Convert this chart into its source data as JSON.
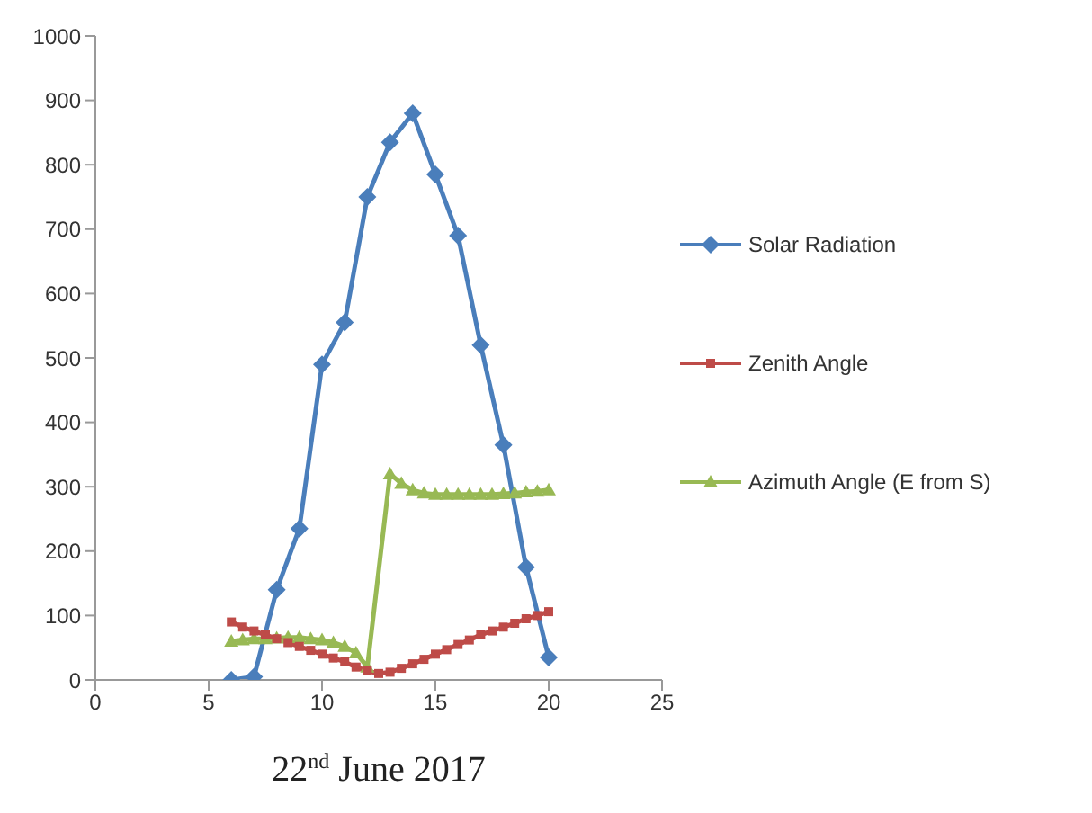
{
  "chart_data": {
    "type": "line",
    "xlabel": "22$^{nd}$ June 2017",
    "xlim": [
      0,
      25
    ],
    "xticks": [
      0,
      5,
      10,
      15,
      20,
      25
    ],
    "ylim": [
      0,
      1000
    ],
    "yticks": [
      0,
      100,
      200,
      300,
      400,
      500,
      600,
      700,
      800,
      900,
      1000
    ],
    "grid": false,
    "legend": "right",
    "series": [
      {
        "name": "Solar Radiation",
        "color": "#4a7ebb",
        "marker": "diamond",
        "x": [
          6,
          7,
          8,
          9,
          10,
          11,
          12,
          13,
          14,
          15,
          16,
          17,
          18,
          19,
          20
        ],
        "values": [
          0,
          5,
          140,
          235,
          490,
          555,
          750,
          835,
          880,
          785,
          690,
          520,
          365,
          175,
          35
        ]
      },
      {
        "name": "Zenith Angle",
        "color": "#be4b48",
        "marker": "square",
        "x": [
          6,
          6.5,
          7,
          7.5,
          8,
          8.5,
          9,
          9.5,
          10,
          10.5,
          11,
          11.5,
          12,
          12.5,
          13,
          13.5,
          14,
          14.5,
          15,
          15.5,
          16,
          16.5,
          17,
          17.5,
          18,
          18.5,
          19,
          19.5,
          20
        ],
        "values": [
          90,
          82,
          76,
          70,
          64,
          58,
          52,
          46,
          40,
          34,
          28,
          20,
          14,
          10,
          12,
          18,
          25,
          32,
          40,
          47,
          55,
          62,
          70,
          76,
          82,
          88,
          95,
          100,
          106
        ]
      },
      {
        "name": "Azimuth Angle (E from S)",
        "color": "#98b954",
        "marker": "triangle",
        "x": [
          6,
          6.5,
          7,
          7.5,
          8,
          8.5,
          9,
          9.5,
          10,
          10.5,
          11,
          11.5,
          12,
          13,
          13.5,
          14,
          14.5,
          15,
          15.5,
          16,
          16.5,
          17,
          17.5,
          18,
          18.5,
          19,
          19.5,
          20
        ],
        "values": [
          60,
          62,
          64,
          64,
          65,
          66,
          66,
          64,
          62,
          58,
          52,
          42,
          20,
          320,
          305,
          295,
          290,
          288,
          288,
          288,
          288,
          288,
          288,
          289,
          290,
          292,
          293,
          295
        ]
      }
    ]
  }
}
